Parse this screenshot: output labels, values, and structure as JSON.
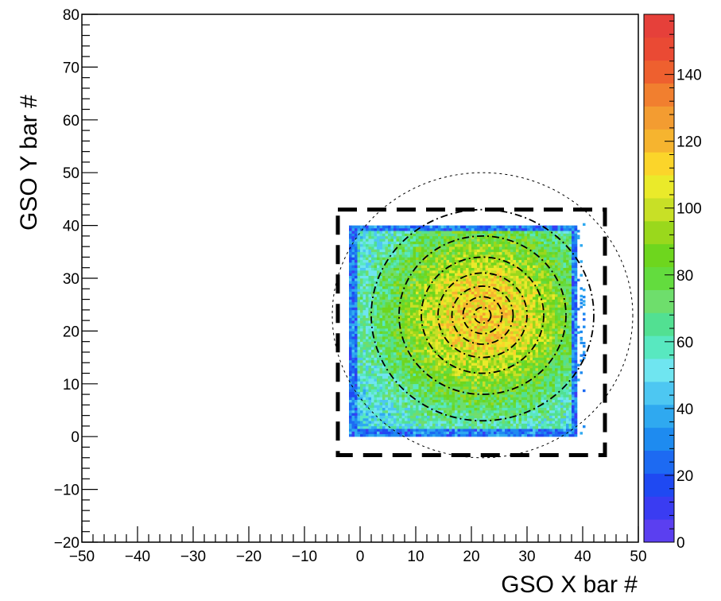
{
  "chart_data": {
    "type": "heatmap",
    "title": "",
    "xlabel": "GSO X bar #",
    "ylabel": "GSO Y bar #",
    "xlim": [
      -50,
      50
    ],
    "ylim": [
      -20,
      80
    ],
    "x_ticks": [
      "−50",
      "−40",
      "−30",
      "−20",
      "−10",
      "0",
      "10",
      "20",
      "30",
      "40",
      "50"
    ],
    "y_ticks": [
      "−20",
      "−10",
      "0",
      "10",
      "20",
      "30",
      "40",
      "50",
      "60",
      "70",
      "80"
    ],
    "colorbar": {
      "range": [
        0,
        158
      ],
      "tick_labels": [
        "0",
        "20",
        "40",
        "60",
        "80",
        "100",
        "120",
        "140"
      ],
      "palette": [
        "#5b3ff0",
        "#3a3cf2",
        "#1f49f2",
        "#1d6af2",
        "#1e8bf0",
        "#2fa9f0",
        "#4dc7f2",
        "#6fe5f0",
        "#58e8c0",
        "#52e092",
        "#6ede6c",
        "#63dc3e",
        "#6ed61e",
        "#9ad81c",
        "#c8e026",
        "#eaea2a",
        "#fbd52a",
        "#f6b42f",
        "#f39c31",
        "#f17f2f",
        "#ee602f",
        "#ea4a34",
        "#e6403a"
      ]
    },
    "region": {
      "description_x": [
        -2,
        39
      ],
      "description_y": [
        0,
        40
      ]
    },
    "peak": {
      "x": 22,
      "y": 23
    },
    "contours": [
      {
        "rx": 1.5,
        "ry": 1.5
      },
      {
        "rx": 3.5,
        "ry": 3.5
      },
      {
        "rx": 5.5,
        "ry": 5.5
      },
      {
        "rx": 8,
        "ry": 8
      },
      {
        "rx": 11,
        "ry": 11
      },
      {
        "rx": 15,
        "ry": 15
      },
      {
        "rx": 20,
        "ry": 20
      },
      {
        "rx": 27,
        "ry": 27
      }
    ],
    "dashed_box": {
      "x": [
        -4,
        44
      ],
      "y": [
        -3.5,
        43
      ]
    }
  }
}
